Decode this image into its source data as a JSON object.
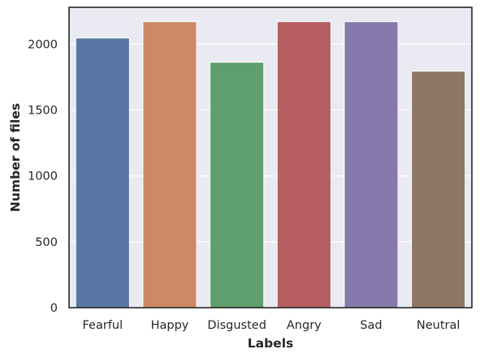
{
  "chart_data": {
    "type": "bar",
    "title": "",
    "xlabel": "Labels",
    "ylabel": "Number of files",
    "categories": [
      "Fearful",
      "Happy",
      "Disgusted",
      "Angry",
      "Sad",
      "Neutral"
    ],
    "values": [
      2047,
      2171,
      1863,
      2171,
      2171,
      1795
    ],
    "yticks": [
      0,
      500,
      1000,
      1500,
      2000
    ],
    "ylim": [
      0,
      2280
    ],
    "grid": true,
    "legend": "none",
    "colors": [
      "#5975a4",
      "#cc8963",
      "#5f9e6e",
      "#b55d60",
      "#857aab",
      "#8d7866"
    ],
    "background": "#eaeaf2",
    "grid_color": "#ffffff",
    "bar_edge_color": "#ffffff"
  }
}
